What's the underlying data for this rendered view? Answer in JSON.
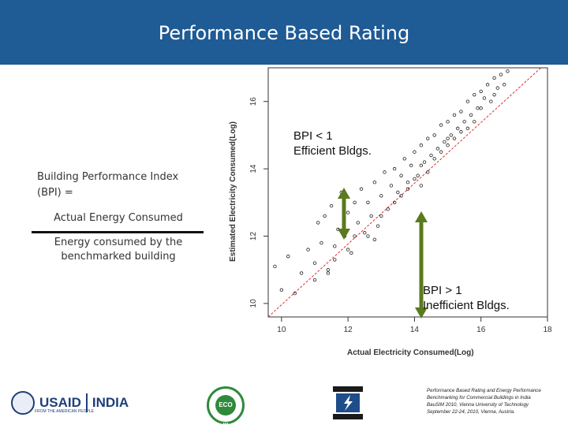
{
  "slide": {
    "title": "Performance Based Rating"
  },
  "definition": {
    "heading_line1": "Building Performance Index",
    "heading_line2": "(BPI) =",
    "numerator": "Actual Energy Consumed",
    "denominator_line1": "Energy consumed by the",
    "denominator_line2": "benchmarked building"
  },
  "annotations": {
    "efficient_line1": "BPI < 1",
    "efficient_line2": "Efficient Bldgs.",
    "inefficient_line1": "BPI > 1",
    "inefficient_line2": "Inefficient Bldgs."
  },
  "colors": {
    "header": "#1f5b95",
    "arrow": "#5a7a1e",
    "regression": "#e03030",
    "points": "#222222"
  },
  "chart_data": {
    "type": "scatter",
    "xlabel": "Actual Electricity Consumed(Log)",
    "ylabel": "Estimated Electricity Consumed(Log)",
    "xlim": [
      9.6,
      18
    ],
    "ylim": [
      9.6,
      17
    ],
    "xticks": [
      10,
      12,
      14,
      16,
      18
    ],
    "yticks": [
      10,
      12,
      14,
      16
    ],
    "regression": {
      "label": "",
      "x": [
        9.6,
        17.8
      ],
      "y": [
        9.6,
        17.0
      ]
    },
    "series": [
      {
        "name": "buildings",
        "x": [
          9.8,
          10.0,
          10.2,
          10.4,
          10.6,
          10.8,
          11.0,
          11.1,
          11.2,
          11.3,
          11.4,
          11.5,
          11.6,
          11.7,
          11.8,
          11.9,
          12.0,
          12.1,
          12.2,
          12.3,
          12.4,
          12.5,
          12.6,
          12.7,
          12.8,
          12.9,
          13.0,
          13.1,
          13.2,
          13.3,
          13.4,
          13.5,
          13.6,
          13.7,
          13.8,
          13.9,
          14.0,
          14.1,
          14.2,
          14.3,
          14.4,
          14.5,
          14.6,
          14.7,
          14.8,
          14.9,
          15.0,
          15.1,
          15.2,
          15.3,
          15.4,
          15.5,
          15.6,
          15.7,
          15.8,
          15.9,
          16.0,
          16.1,
          16.2,
          16.3,
          16.4,
          16.5,
          16.6,
          16.7,
          16.8,
          14.2,
          14.6,
          15.0,
          15.4,
          15.8,
          13.8,
          14.4,
          15.2,
          16.0,
          12.6,
          13.4,
          11.0,
          11.6,
          12.2,
          13.0,
          14.8,
          15.6,
          16.4,
          12.8,
          13.6,
          14.2,
          11.4,
          12.0,
          15.0,
          14.0
        ],
        "y": [
          11.1,
          10.4,
          11.4,
          10.3,
          10.9,
          11.6,
          11.2,
          12.4,
          11.8,
          12.6,
          11.0,
          12.9,
          11.7,
          12.2,
          13.3,
          12.0,
          12.7,
          11.5,
          13.0,
          12.4,
          13.4,
          12.1,
          13.0,
          12.6,
          13.6,
          12.3,
          13.2,
          13.9,
          12.8,
          13.5,
          14.0,
          13.3,
          13.8,
          14.3,
          13.6,
          14.1,
          14.5,
          13.8,
          14.7,
          14.2,
          14.9,
          14.4,
          15.0,
          14.6,
          15.3,
          14.8,
          15.4,
          15.0,
          15.6,
          15.2,
          15.7,
          15.4,
          16.0,
          15.6,
          16.2,
          15.8,
          16.3,
          16.1,
          16.5,
          16.0,
          16.7,
          16.4,
          16.8,
          16.5,
          16.9,
          14.1,
          14.3,
          14.7,
          15.1,
          15.4,
          13.4,
          13.9,
          14.9,
          15.8,
          12.0,
          13.0,
          10.7,
          11.3,
          12.0,
          12.6,
          14.5,
          15.2,
          16.2,
          11.9,
          13.2,
          13.5,
          10.9,
          11.6,
          14.9,
          13.7
        ]
      }
    ]
  }
}
